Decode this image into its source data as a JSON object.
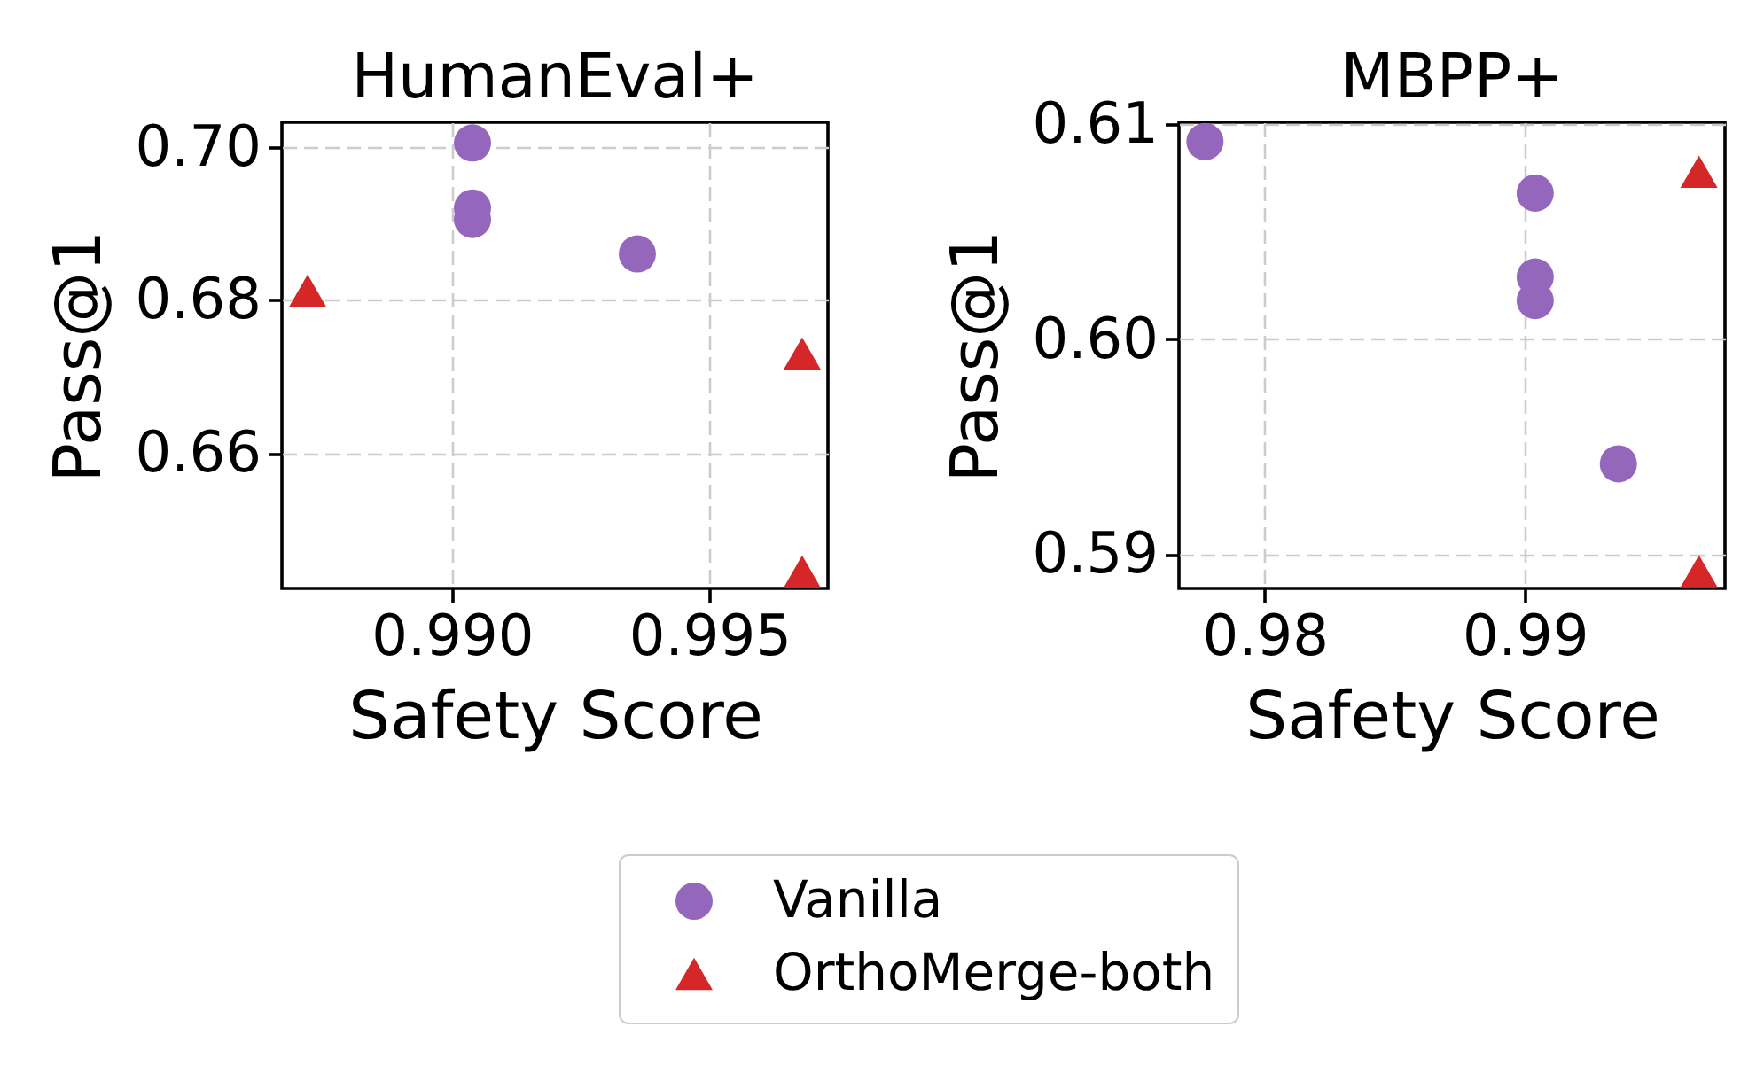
{
  "chart_data": [
    {
      "type": "scatter",
      "title": "HumanEval+",
      "xlabel": "Safety Score",
      "ylabel": "Pass@1",
      "series": [
        {
          "name": "Vanilla",
          "color": "#9467bd",
          "marker": "circle",
          "x": [
            0.9904,
            0.9904,
            0.9904,
            0.9936
          ],
          "values": [
            0.7005,
            0.692,
            0.6905,
            0.686
          ]
        },
        {
          "name": "OrthoMerge-both",
          "color": "#d62728",
          "marker": "triangle",
          "x": [
            0.9872,
            0.9968,
            0.9968
          ],
          "values": [
            0.6812,
            0.673,
            0.6445
          ]
        }
      ],
      "xlim": [
        0.9867,
        0.9973
      ],
      "ylim": [
        0.6423,
        0.7032
      ],
      "xticks": [
        {
          "value": 0.99,
          "label": "0.990"
        },
        {
          "value": 0.995,
          "label": "0.995"
        }
      ],
      "yticks": [
        0.66,
        0.68,
        {
          "value": 0.7,
          "label": "0.70"
        }
      ],
      "grid": true,
      "legend": "bottom"
    },
    {
      "type": "scatter",
      "title": "MBPP+",
      "xlabel": "Safety Score",
      "ylabel": "Pass@1",
      "series": [
        {
          "name": "Vanilla",
          "color": "#9467bd",
          "marker": "circle",
          "x": [
            0.9777,
            0.9904,
            0.9904,
            0.9904,
            0.9936
          ],
          "values": [
            0.6092,
            0.6068,
            0.6029,
            0.6018,
            0.5942
          ]
        },
        {
          "name": "OrthoMerge-both",
          "color": "#d62728",
          "marker": "triangle",
          "x": [
            0.9967,
            0.9967
          ],
          "values": [
            0.6078,
            0.5892
          ]
        }
      ],
      "xlim": [
        0.9767,
        0.9977
      ],
      "ylim": [
        0.5884,
        0.6101
      ],
      "xticks": [
        0.98,
        0.99
      ],
      "yticks": [
        0.59,
        {
          "value": 0.6,
          "label": "0.60"
        },
        0.61
      ],
      "grid": true,
      "legend": "bottom"
    }
  ]
}
